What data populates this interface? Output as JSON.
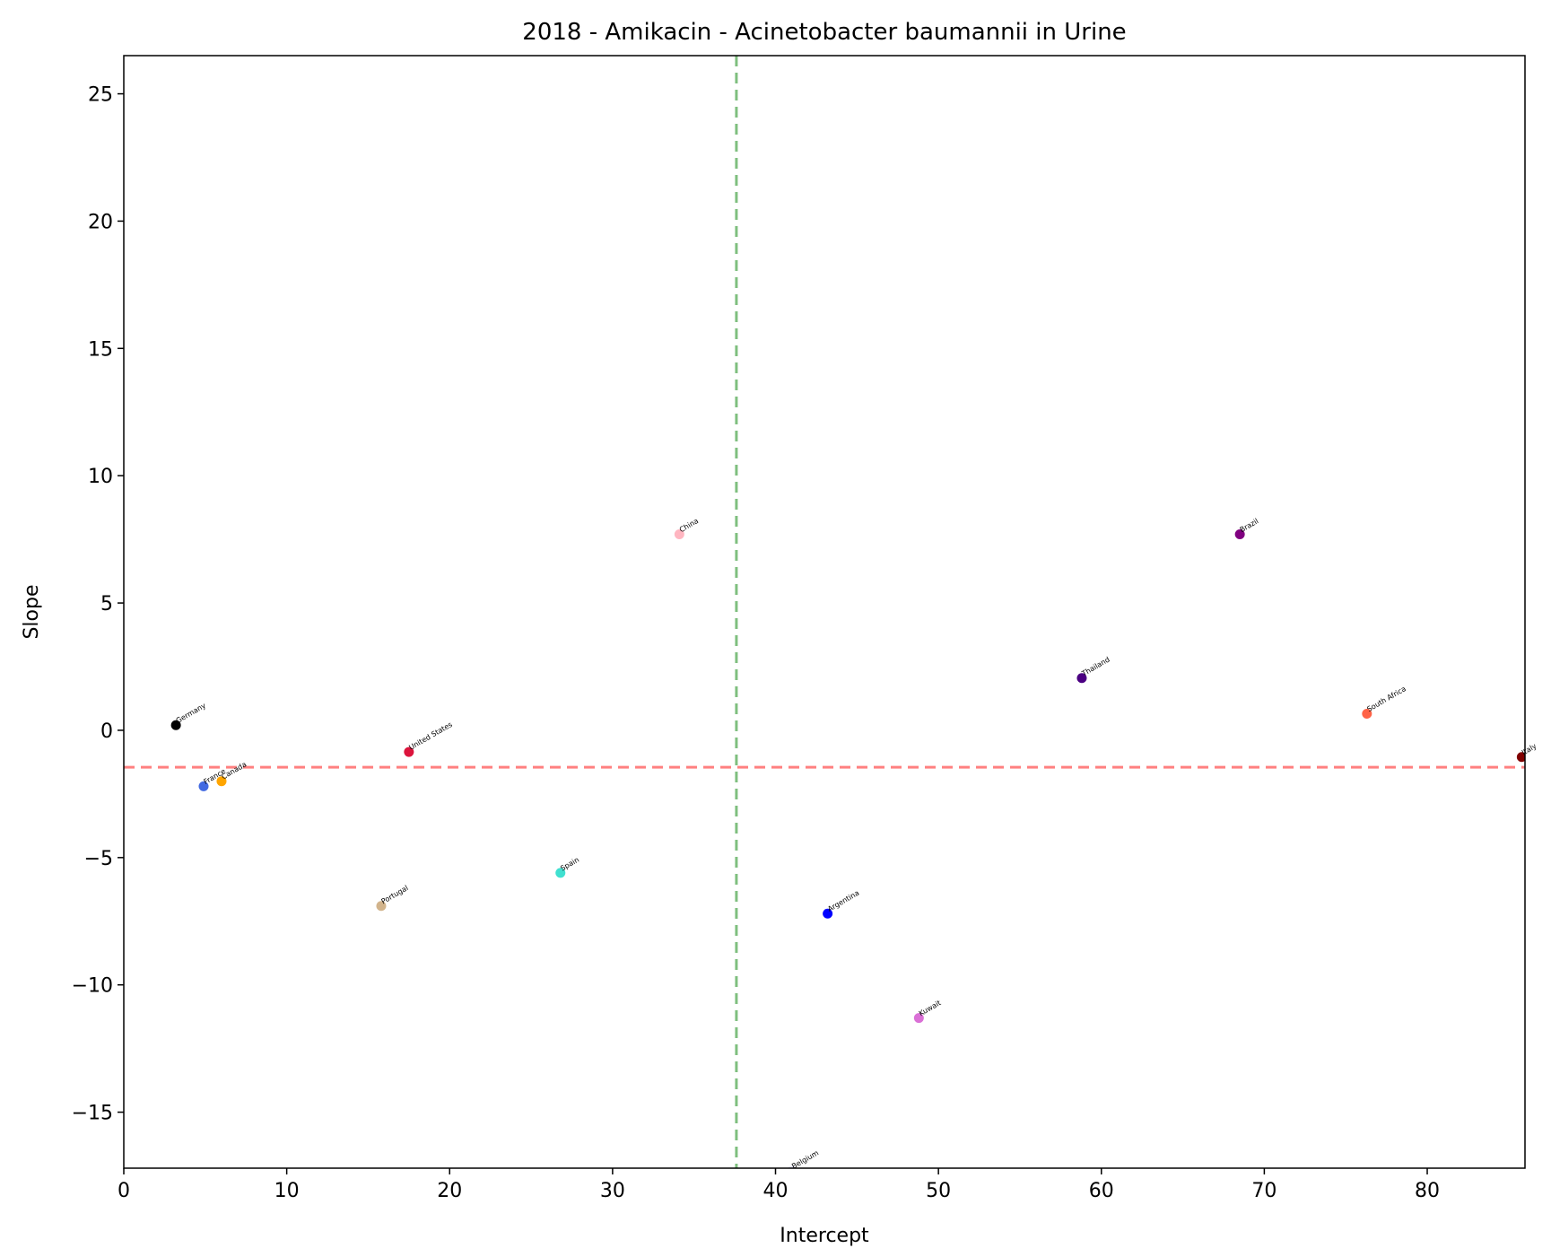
{
  "chart_data": {
    "type": "scatter",
    "title": "2018 - Amikacin - Acinetobacter baumannii in Urine",
    "xlabel": "Intercept",
    "ylabel": "Slope",
    "xlim": [
      0,
      86
    ],
    "ylim": [
      -17.2,
      26.5
    ],
    "xticks": [
      0,
      10,
      20,
      30,
      40,
      50,
      60,
      70,
      80
    ],
    "yticks": [
      -15,
      -10,
      -5,
      0,
      5,
      10,
      15,
      20,
      25
    ],
    "grid": false,
    "reference_lines": {
      "vertical_x": 37.6,
      "vertical_color": "#7fbf7f",
      "horizontal_y": -1.45,
      "horizontal_color": "#ff8080"
    },
    "points": [
      {
        "label": "Germany",
        "x": 3.2,
        "y": 0.2,
        "color": "#000000"
      },
      {
        "label": "France",
        "x": 4.9,
        "y": -2.2,
        "color": "#4169e1"
      },
      {
        "label": "Canada",
        "x": 6.0,
        "y": -2.0,
        "color": "#ffa500"
      },
      {
        "label": "United States",
        "x": 17.5,
        "y": -0.85,
        "color": "#dc143c"
      },
      {
        "label": "Portugal",
        "x": 15.8,
        "y": -6.9,
        "color": "#d2b48c"
      },
      {
        "label": "Spain",
        "x": 26.8,
        "y": -5.6,
        "color": "#40e0d0"
      },
      {
        "label": "China",
        "x": 34.1,
        "y": 7.7,
        "color": "#ffb6c1"
      },
      {
        "label": "Belgium",
        "x": 41.0,
        "y": -17.3,
        "color": "#e6e6fa"
      },
      {
        "label": "Argentina",
        "x": 43.2,
        "y": -7.2,
        "color": "#0000ff"
      },
      {
        "label": "Kuwait",
        "x": 48.8,
        "y": -11.3,
        "color": "#da70d6"
      },
      {
        "label": "Thailand",
        "x": 58.8,
        "y": 2.05,
        "color": "#4b0082"
      },
      {
        "label": "Brazil",
        "x": 68.5,
        "y": 7.7,
        "color": "#800080"
      },
      {
        "label": "South Africa",
        "x": 76.3,
        "y": 0.65,
        "color": "#ff6347"
      },
      {
        "label": "Italy",
        "x": 85.8,
        "y": -1.05,
        "color": "#800000"
      }
    ]
  }
}
